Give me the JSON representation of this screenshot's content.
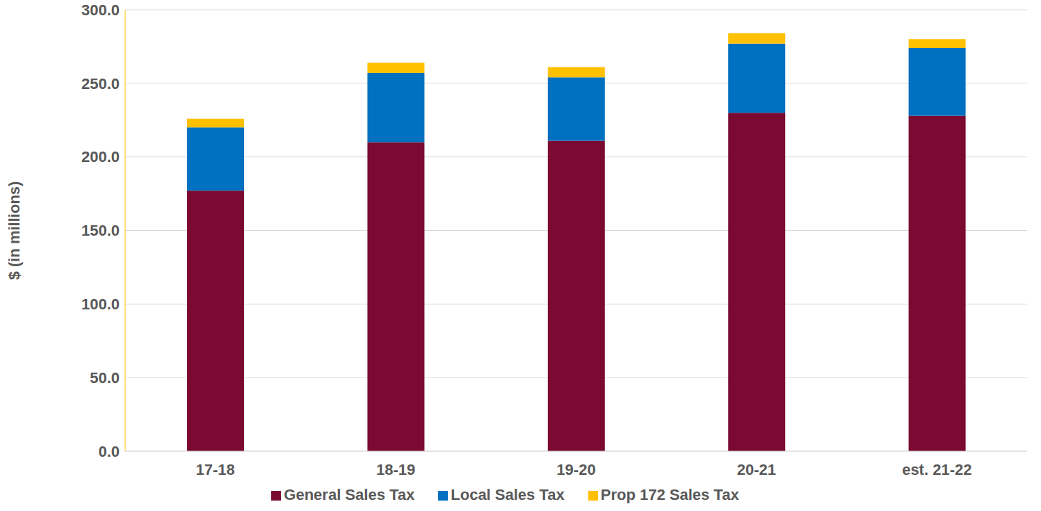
{
  "chart_data": {
    "type": "bar",
    "stacked": true,
    "y_label": "$ (in millions)",
    "categories": [
      "17-18",
      "18-19",
      "19-20",
      "20-21",
      "est. 21-22"
    ],
    "series": [
      {
        "name": "General Sales Tax",
        "color": "#7b0a32",
        "values": [
          177,
          210,
          211,
          230,
          228
        ]
      },
      {
        "name": "Local Sales Tax",
        "color": "#0070c0",
        "values": [
          43,
          47,
          43,
          47,
          46
        ]
      },
      {
        "name": "Prop 172 Sales Tax",
        "color": "#ffc000",
        "values": [
          6,
          7,
          7,
          7,
          6
        ]
      }
    ],
    "ylim": [
      0,
      300
    ],
    "yticks": [
      {
        "value": 0,
        "label": "0.0"
      },
      {
        "value": 50,
        "label": "50.0"
      },
      {
        "value": 100,
        "label": "100.0"
      },
      {
        "value": 150,
        "label": "150.0"
      },
      {
        "value": 200,
        "label": "200.0"
      },
      {
        "value": 250,
        "label": "250.0"
      },
      {
        "value": 300,
        "label": "300.0"
      }
    ],
    "grid": true,
    "legend": "bottom"
  }
}
